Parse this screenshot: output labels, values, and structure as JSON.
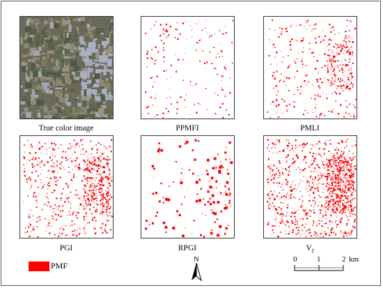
{
  "panels": [
    {
      "id": "true-color",
      "caption": "True color image",
      "density": 0
    },
    {
      "id": "ppmfi",
      "caption": "PPMFI",
      "density": 160
    },
    {
      "id": "pmli",
      "caption": "PMLI",
      "density": 420
    },
    {
      "id": "pgi",
      "caption": "PGI",
      "density": 700
    },
    {
      "id": "rpgi",
      "caption": "RPGI",
      "density": 140
    },
    {
      "id": "vf",
      "caption": "V",
      "caption_sub": "f",
      "density": 1100
    }
  ],
  "legend": {
    "label": "PMF",
    "color": "#ff0000"
  },
  "north_arrow": {
    "label": "N"
  },
  "scale_bar": {
    "ticks": [
      "0",
      "1",
      "2"
    ],
    "unit": "km"
  },
  "colors": {
    "detection": "#ff0000",
    "frame": "#555555"
  }
}
